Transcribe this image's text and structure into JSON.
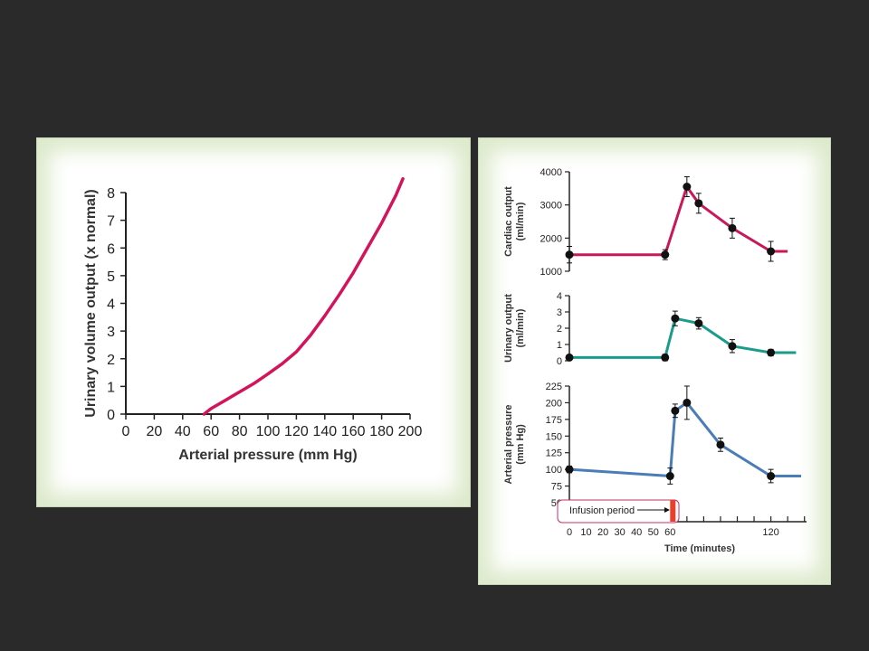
{
  "chart_data": [
    {
      "type": "line",
      "xlabel": "Arterial pressure (mm Hg)",
      "ylabel": "Urinary volume output (x normal)",
      "xlim": [
        0,
        200
      ],
      "ylim": [
        0,
        8
      ],
      "xticks": [
        "0",
        "20",
        "40",
        "60",
        "80",
        "100",
        "120",
        "140",
        "160",
        "180",
        "200"
      ],
      "yticks": [
        "0",
        "1",
        "2",
        "3",
        "4",
        "5",
        "6",
        "7",
        "8"
      ],
      "grid": false,
      "color": "#d4145a",
      "series": [
        {
          "x": [
            55,
            60,
            70,
            80,
            90,
            100,
            110,
            120,
            130,
            140,
            150,
            160,
            170,
            180,
            190,
            195
          ],
          "y": [
            0,
            0.2,
            0.5,
            0.8,
            1.1,
            1.45,
            1.82,
            2.25,
            2.85,
            3.55,
            4.3,
            5.1,
            6.0,
            6.9,
            7.9,
            8.5
          ]
        }
      ]
    },
    {
      "type": "line",
      "ylabel": "Cardiac output (ml/min)",
      "ylim": [
        1000,
        4000
      ],
      "yticks": [
        "1000",
        "2000",
        "3000",
        "4000"
      ],
      "color": "#c8185a",
      "series": [
        {
          "x": [
            0,
            57,
            70,
            77,
            97,
            120,
            130
          ],
          "y": [
            1500,
            1500,
            3550,
            3050,
            2300,
            1600,
            1600
          ]
        }
      ],
      "points": {
        "x": [
          0,
          57,
          70,
          77,
          97,
          120
        ],
        "y": [
          1500,
          1500,
          3550,
          3050,
          2300,
          1600
        ],
        "err": [
          250,
          150,
          300,
          300,
          300,
          300
        ]
      }
    },
    {
      "type": "line",
      "ylabel": "Urinary output (ml/min)",
      "ylim": [
        0,
        4
      ],
      "yticks": [
        "0",
        "1",
        "2",
        "3",
        "4"
      ],
      "color": "#1a9c8c",
      "series": [
        {
          "x": [
            0,
            57,
            63,
            77,
            97,
            120,
            135
          ],
          "y": [
            0.2,
            0.2,
            2.6,
            2.3,
            0.9,
            0.5,
            0.5
          ]
        }
      ],
      "points": {
        "x": [
          0,
          57,
          63,
          77,
          97,
          120
        ],
        "y": [
          0.2,
          0.2,
          2.6,
          2.3,
          0.9,
          0.5
        ],
        "err": [
          0.15,
          0.2,
          0.45,
          0.35,
          0.4,
          0.2
        ]
      }
    },
    {
      "type": "line",
      "ylabel": "Arterial pressure (mm Hg)",
      "xlabel": "Time (minutes)",
      "ylim": [
        50,
        225
      ],
      "yticks": [
        "50",
        "75",
        "100",
        "125",
        "150",
        "175",
        "200",
        "225"
      ],
      "xticks": [
        "0",
        "10",
        "20",
        "30",
        "40",
        "50",
        "60",
        "120"
      ],
      "xtick_values": [
        0,
        10,
        20,
        30,
        40,
        50,
        60,
        120
      ],
      "color": "#4a7db8",
      "series": [
        {
          "x": [
            0,
            60,
            63,
            70,
            90,
            120,
            138
          ],
          "y": [
            100,
            90,
            188,
            200,
            137,
            90,
            90
          ]
        }
      ],
      "points": {
        "x": [
          0,
          60,
          63,
          70,
          90,
          120
        ],
        "y": [
          100,
          90,
          188,
          200,
          137,
          90
        ],
        "err": [
          5,
          12,
          10,
          25,
          10,
          10
        ]
      },
      "infusion_label": "Infusion period",
      "infusion_color": "#e8402a"
    }
  ]
}
